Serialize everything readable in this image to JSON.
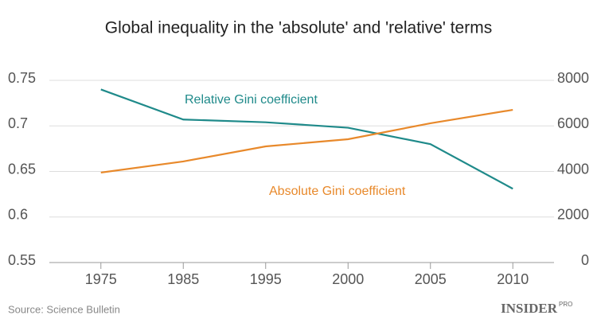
{
  "chart_data": {
    "type": "line",
    "title": "Global inequality in the 'absolute' and 'relative' terms",
    "categories": [
      "1975",
      "1985",
      "1995",
      "2000",
      "2005",
      "2010"
    ],
    "series": [
      {
        "name": "Relative Gini coefficient",
        "color": "#1f8a8a",
        "values": [
          0.74,
          0.707,
          0.704,
          0.698,
          0.68,
          0.631
        ]
      },
      {
        "name": "Absolute Gini coefficient",
        "color": "#e8892b",
        "axis": "y2",
        "values": [
          3950,
          4440,
          5100,
          5415,
          6115,
          6705
        ]
      }
    ],
    "ylim": [
      0.55,
      0.75
    ],
    "yticks": [
      0.55,
      0.6,
      0.65,
      0.7,
      0.75
    ],
    "y2lim": [
      0,
      8000
    ],
    "y2ticks": [
      0,
      2000,
      4000,
      6000,
      8000
    ],
    "grid": true,
    "source": "Source: Science Bulletin",
    "logo": {
      "text": "INSIDER",
      "sup": "PRO"
    }
  }
}
